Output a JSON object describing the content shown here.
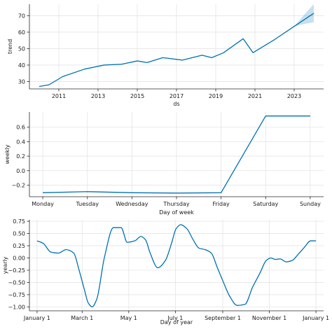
{
  "colors": {
    "line": "#0072b2",
    "band": "#0072b2",
    "grid": "#e4e4e4",
    "axis": "#262626"
  },
  "chart_data": [
    {
      "type": "line",
      "xlabel": "ds",
      "ylabel": "trend",
      "grid": true,
      "xlim": [
        2009.5,
        2024.5
      ],
      "ylim": [
        25.5,
        77
      ],
      "xticks": [
        2011,
        2013,
        2015,
        2017,
        2019,
        2021,
        2023
      ],
      "xtick_labels": [
        "2011",
        "2013",
        "2015",
        "2017",
        "2019",
        "2021",
        "2023"
      ],
      "yticks": [
        30,
        40,
        50,
        60,
        70
      ],
      "ytick_labels": [
        "30",
        "40",
        "50",
        "60",
        "70"
      ],
      "series": [
        {
          "x": [
            2010.0,
            2010.5,
            2011.2,
            2012.3,
            2013.3,
            2014.2,
            2015.0,
            2015.5,
            2016.3,
            2017.3,
            2018.3,
            2018.8,
            2019.4,
            2020.4,
            2020.9,
            2022.0,
            2023.0,
            2024.0
          ],
          "y": [
            27,
            28,
            33,
            37.5,
            40,
            40.5,
            42.5,
            41.5,
            44.5,
            43,
            46,
            44.5,
            47.5,
            56,
            47.5,
            55.5,
            63.5,
            71.5
          ]
        }
      ],
      "uncertainty_band": {
        "x": [
          2023.0,
          2023.5,
          2024.0
        ],
        "lower": [
          63.5,
          65,
          66
        ],
        "upper": [
          63.5,
          70.5,
          77
        ]
      }
    },
    {
      "type": "line",
      "xlabel": "Day of week",
      "ylabel": "weekly",
      "grid": true,
      "categories": [
        "Monday",
        "Tuesday",
        "Wednesday",
        "Thursday",
        "Friday",
        "Saturday",
        "Sunday"
      ],
      "xlim": [
        -0.3,
        6.3
      ],
      "ylim": [
        -0.36,
        0.81
      ],
      "yticks": [
        -0.2,
        0.0,
        0.2,
        0.4,
        0.6
      ],
      "ytick_labels": [
        "−0.2",
        "0.0",
        "0.2",
        "0.4",
        "0.6"
      ],
      "series": [
        {
          "values": [
            -0.305,
            -0.29,
            -0.305,
            -0.31,
            -0.305,
            0.755,
            0.755
          ]
        }
      ]
    },
    {
      "type": "line",
      "xlabel": "Day of year",
      "ylabel": "yearly",
      "grid": true,
      "xlim": [
        -10,
        375
      ],
      "ylim": [
        -1.08,
        0.78
      ],
      "xticks": [
        0,
        59,
        120,
        181,
        243,
        304,
        365
      ],
      "xtick_labels": [
        "January 1",
        "March 1",
        "May 1",
        "July 1",
        "September 1",
        "November 1",
        "January 1"
      ],
      "yticks": [
        -1.0,
        -0.75,
        -0.5,
        -0.25,
        0.0,
        0.25,
        0.5,
        0.75
      ],
      "ytick_labels": [
        "−1.00",
        "−0.75",
        "−0.50",
        "−0.25",
        "0.00",
        "0.25",
        "0.50",
        "0.75"
      ],
      "series": [
        {
          "x": [
            0,
            8,
            18,
            28,
            38,
            48,
            55,
            62,
            67,
            72,
            78,
            88,
            100,
            110,
            118,
            128,
            136,
            142,
            148,
            158,
            168,
            176,
            182,
            188,
            196,
            204,
            212,
            220,
            228,
            236,
            244,
            252,
            262,
            272,
            282,
            292,
            300,
            306,
            312,
            318,
            326,
            334,
            342,
            350,
            358,
            365
          ],
          "y": [
            0.35,
            0.3,
            0.12,
            0.1,
            0.17,
            0.1,
            -0.25,
            -0.65,
            -0.92,
            -1.0,
            -0.85,
            0.0,
            0.62,
            0.62,
            0.32,
            0.35,
            0.44,
            0.37,
            0.1,
            -0.2,
            -0.05,
            0.3,
            0.6,
            0.68,
            0.6,
            0.38,
            0.2,
            0.17,
            0.1,
            -0.2,
            -0.5,
            -0.78,
            -0.97,
            -0.95,
            -0.6,
            -0.3,
            -0.05,
            0.0,
            -0.03,
            -0.02,
            -0.08,
            -0.05,
            0.08,
            0.22,
            0.35,
            0.35
          ]
        }
      ]
    }
  ]
}
